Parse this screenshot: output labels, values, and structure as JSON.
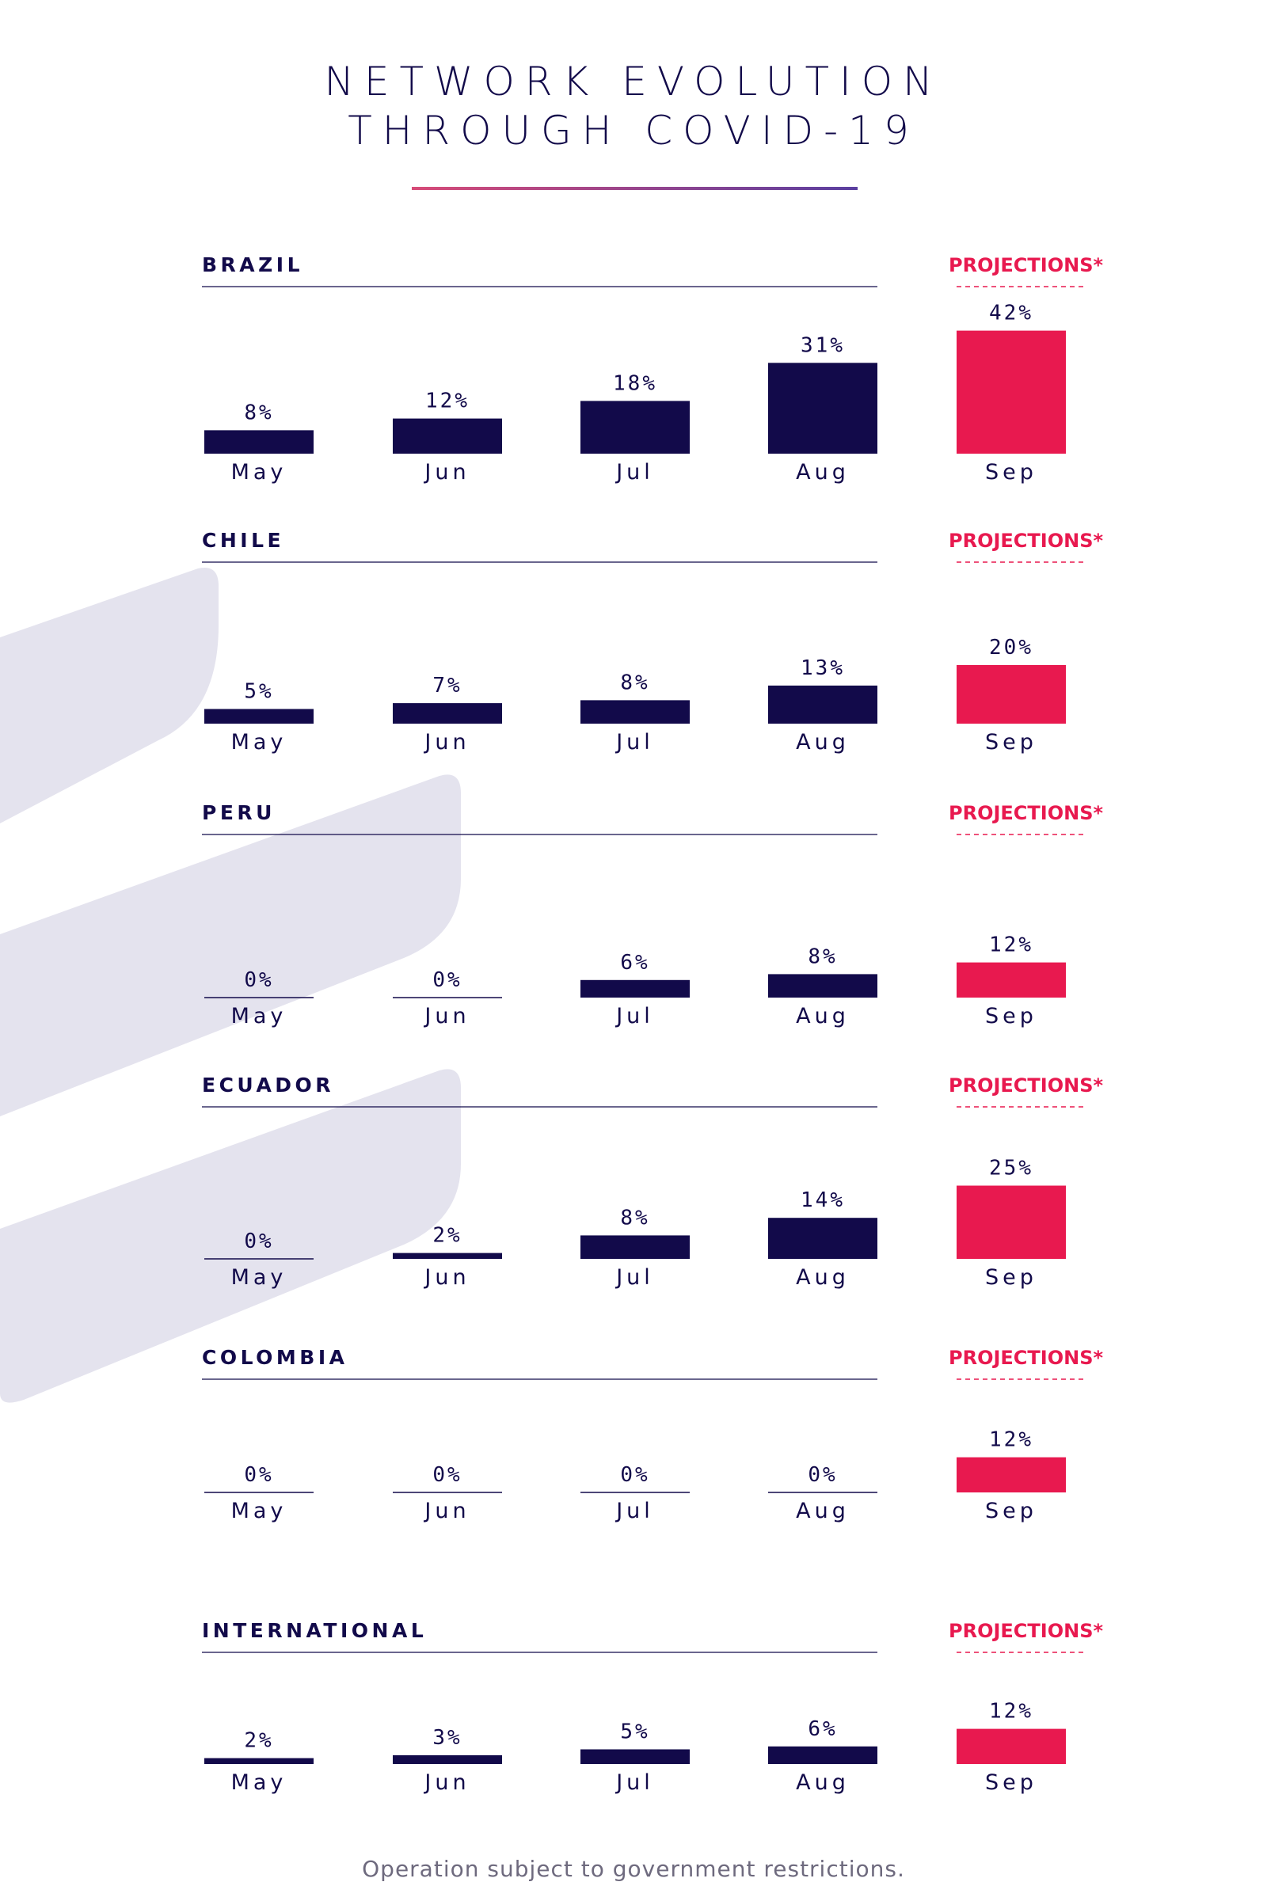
{
  "title_line1": "NETWORK EVOLUTION",
  "title_line2": "THROUGH COVID-19",
  "projection_label": "PROJECTIONS*",
  "footnote": "Operation subject to government restrictions.",
  "colors": {
    "actual": "#120a4a",
    "projection": "#e8194f",
    "background_shape": "#e4e3ee",
    "title_rule_start": "#d74b78",
    "title_rule_end": "#5a3fa0"
  },
  "chart_data": {
    "type": "bar",
    "unit": "%",
    "categories": [
      "May",
      "Jun",
      "Jul",
      "Aug",
      "Sep"
    ],
    "projection_category": "Sep",
    "panels": [
      {
        "country": "BRAZIL",
        "values": [
          8,
          12,
          18,
          31,
          42
        ],
        "labels": [
          "8%",
          "12%",
          "18%",
          "31%",
          "42%"
        ]
      },
      {
        "country": "CHILE",
        "values": [
          5,
          7,
          8,
          13,
          20
        ],
        "labels": [
          "5%",
          "7%",
          "8%",
          "13%",
          "20%"
        ]
      },
      {
        "country": "PERU",
        "values": [
          0,
          0,
          6,
          8,
          12
        ],
        "labels": [
          "0%",
          "0%",
          "6%",
          "8%",
          "12%"
        ]
      },
      {
        "country": "ECUADOR",
        "values": [
          0,
          2,
          8,
          14,
          25
        ],
        "labels": [
          "0%",
          "2%",
          "8%",
          "14%",
          "25%"
        ]
      },
      {
        "country": "COLOMBIA",
        "values": [
          0,
          0,
          0,
          0,
          12
        ],
        "labels": [
          "0%",
          "0%",
          "0%",
          "0%",
          "12%"
        ]
      },
      {
        "country": "INTERNATIONAL",
        "values": [
          2,
          3,
          5,
          6,
          12
        ],
        "labels": [
          "2%",
          "3%",
          "5%",
          "6%",
          "12%"
        ]
      }
    ]
  }
}
